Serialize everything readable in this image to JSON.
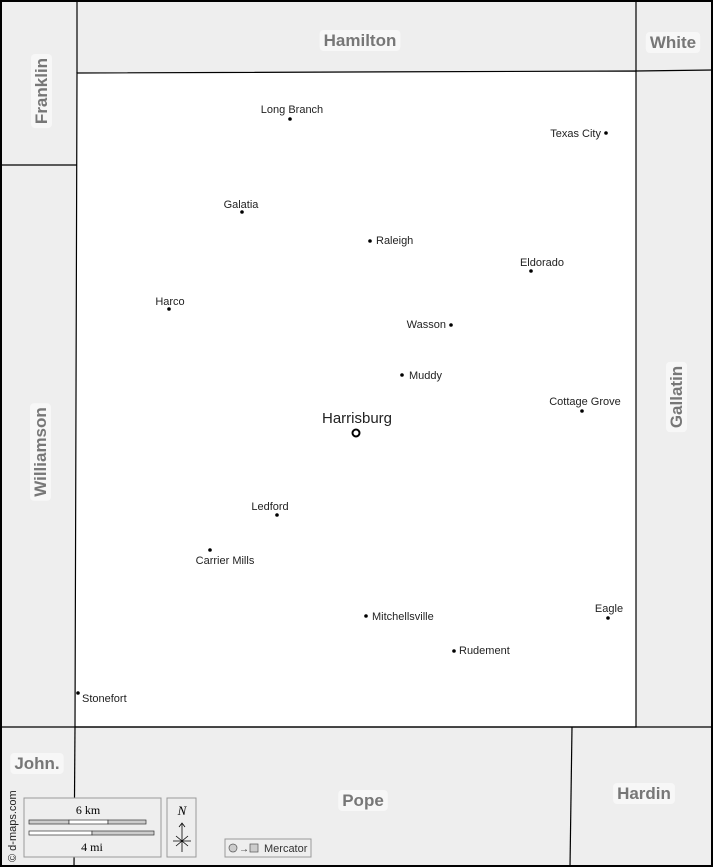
{
  "map": {
    "colors": {
      "outside": "#eeeeee",
      "county": "#ffffff",
      "border": "#000000",
      "label": "#777777"
    },
    "neighbors": [
      {
        "name": "Hamilton"
      },
      {
        "name": "White"
      },
      {
        "name": "Franklin"
      },
      {
        "name": "Williamson"
      },
      {
        "name": "Gallatin"
      },
      {
        "name": "John."
      },
      {
        "name": "Pope"
      },
      {
        "name": "Hardin"
      }
    ],
    "county_seat": {
      "name": "Harrisburg",
      "icon": "circle-dot-icon"
    },
    "towns": [
      {
        "name": "Long Branch"
      },
      {
        "name": "Texas City"
      },
      {
        "name": "Galatia"
      },
      {
        "name": "Raleigh"
      },
      {
        "name": "Eldorado"
      },
      {
        "name": "Harco"
      },
      {
        "name": "Wasson"
      },
      {
        "name": "Muddy"
      },
      {
        "name": "Cottage Grove"
      },
      {
        "name": "Ledford"
      },
      {
        "name": "Carrier Mills"
      },
      {
        "name": "Mitchellsville"
      },
      {
        "name": "Eagle"
      },
      {
        "name": "Rudement"
      },
      {
        "name": "Stonefort"
      }
    ],
    "scale": {
      "km_label": "6 km",
      "mi_label": "4 mi"
    },
    "north_label": "N",
    "projection": {
      "label": "Mercator",
      "icon": "circle-to-square-icon"
    },
    "credit": "© d-maps.com"
  }
}
